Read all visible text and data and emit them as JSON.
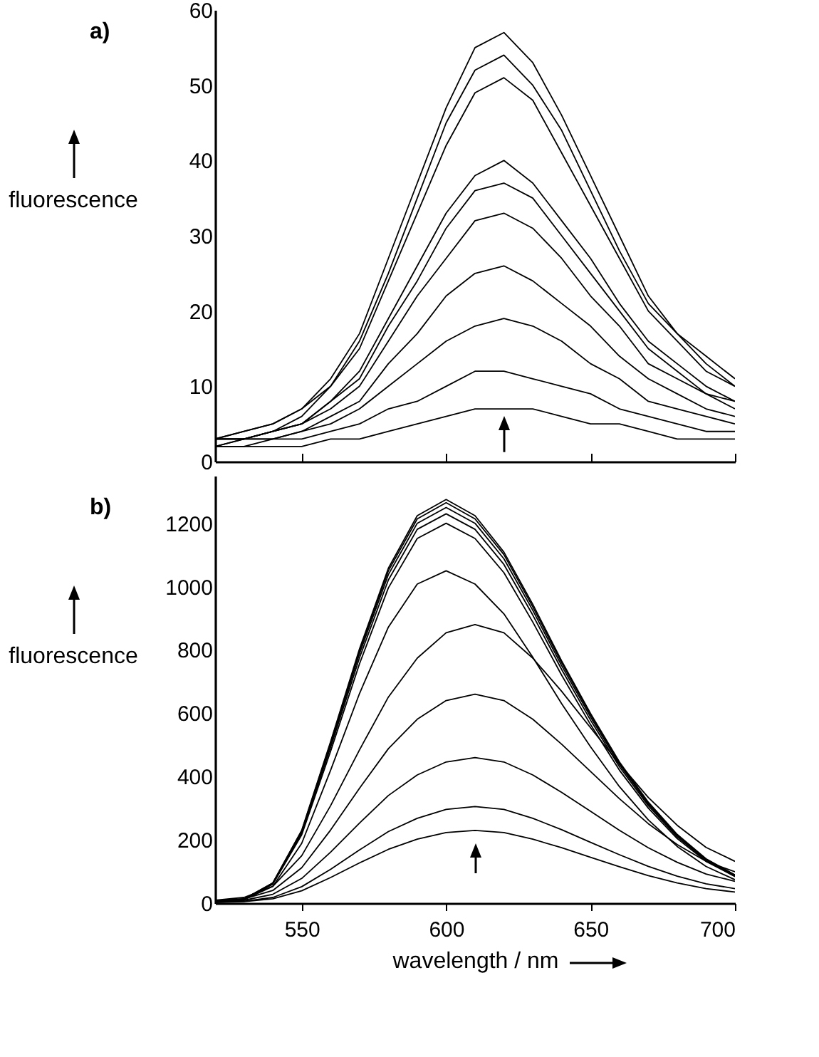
{
  "chart_data": [
    {
      "type": "line",
      "title": "a)",
      "ylabel": "fluorescence",
      "xlim": [
        520,
        700
      ],
      "ylim": [
        0,
        60
      ],
      "xticks": [
        550,
        600,
        650,
        700
      ],
      "yticks": [
        0,
        10,
        20,
        30,
        40,
        50,
        60
      ],
      "tick_labels": "y",
      "x": [
        520,
        530,
        540,
        550,
        560,
        570,
        580,
        590,
        600,
        610,
        620,
        630,
        640,
        650,
        660,
        670,
        680,
        690,
        700
      ],
      "series": [
        {
          "color": "#000000",
          "values": [
            3,
            4,
            5,
            7,
            11,
            17,
            27,
            37,
            47,
            55,
            57,
            53,
            46,
            38,
            30,
            22,
            17,
            14,
            11
          ]
        },
        {
          "color": "#000000",
          "values": [
            3,
            4,
            5,
            7,
            10,
            16,
            25,
            35,
            45,
            52,
            54,
            50,
            44,
            36,
            28,
            21,
            17,
            13,
            10
          ]
        },
        {
          "color": "#000000",
          "values": [
            3,
            3,
            4,
            6,
            10,
            15,
            24,
            33,
            42,
            49,
            51,
            48,
            41,
            34,
            27,
            20,
            16,
            12,
            10
          ]
        },
        {
          "color": "#000000",
          "values": [
            3,
            3,
            4,
            5,
            8,
            12,
            19,
            26,
            33,
            38,
            40,
            37,
            32,
            27,
            21,
            16,
            13,
            10,
            8
          ]
        },
        {
          "color": "#000000",
          "values": [
            3,
            3,
            4,
            5,
            8,
            11,
            18,
            24,
            31,
            36,
            37,
            35,
            30,
            25,
            20,
            15,
            12,
            9,
            8
          ]
        },
        {
          "color": "#000000",
          "values": [
            3,
            3,
            4,
            5,
            7,
            10,
            16,
            22,
            27,
            32,
            33,
            31,
            27,
            22,
            18,
            13,
            11,
            9,
            7
          ]
        },
        {
          "color": "#000000",
          "values": [
            2,
            3,
            3,
            4,
            6,
            8,
            13,
            17,
            22,
            25,
            26,
            24,
            21,
            18,
            14,
            11,
            9,
            7,
            6
          ]
        },
        {
          "color": "#000000",
          "values": [
            2,
            3,
            3,
            4,
            5,
            7,
            10,
            13,
            16,
            18,
            19,
            18,
            16,
            13,
            11,
            8,
            7,
            6,
            5
          ]
        },
        {
          "color": "#000000",
          "values": [
            2,
            2,
            3,
            3,
            4,
            5,
            7,
            8,
            10,
            12,
            12,
            11,
            10,
            9,
            7,
            6,
            5,
            4,
            4
          ]
        },
        {
          "color": "#000000",
          "values": [
            2,
            2,
            2,
            2,
            3,
            3,
            4,
            5,
            6,
            7,
            7,
            7,
            6,
            5,
            5,
            4,
            3,
            3,
            3
          ]
        }
      ]
    },
    {
      "type": "line",
      "title": "b)",
      "xlabel": "wavelength / nm",
      "ylabel": "fluorescence",
      "xlim": [
        520,
        700
      ],
      "ylim": [
        0,
        1350
      ],
      "xticks": [
        550,
        600,
        650,
        700
      ],
      "yticks": [
        0,
        200,
        400,
        600,
        800,
        1000,
        1200
      ],
      "x": [
        520,
        530,
        540,
        550,
        560,
        570,
        580,
        590,
        600,
        610,
        620,
        630,
        640,
        650,
        660,
        670,
        680,
        690,
        700
      ],
      "series": [
        {
          "color": "#000000",
          "values": [
            6,
            13,
            64,
            230,
            510,
            803,
            1058,
            1224,
            1275,
            1224,
            1109,
            944,
            765,
            599,
            446,
            319,
            217,
            140,
            89
          ]
        },
        {
          "color": "#000000",
          "values": [
            6,
            13,
            63,
            228,
            506,
            797,
            1050,
            1214,
            1265,
            1214,
            1101,
            936,
            759,
            595,
            443,
            316,
            215,
            139,
            89
          ]
        },
        {
          "color": "#000000",
          "values": [
            6,
            13,
            63,
            225,
            500,
            788,
            1038,
            1200,
            1250,
            1200,
            1088,
            925,
            750,
            588,
            438,
            313,
            213,
            138,
            88
          ]
        },
        {
          "color": "#000000",
          "values": [
            6,
            12,
            62,
            221,
            492,
            775,
            1021,
            1181,
            1230,
            1181,
            1070,
            910,
            738,
            578,
            431,
            308,
            209,
            135,
            86
          ]
        },
        {
          "color": "#000000",
          "values": [
            6,
            12,
            60,
            216,
            480,
            756,
            996,
            1152,
            1200,
            1152,
            1044,
            888,
            720,
            564,
            420,
            300,
            204,
            132,
            84
          ]
        },
        {
          "color": "#000000",
          "values": [
            5,
            11,
            53,
            189,
            420,
            662,
            872,
            1008,
            1050,
            1008,
            914,
            777,
            630,
            494,
            368,
            263,
            179,
            116,
            74
          ]
        },
        {
          "color": "#000000",
          "values": [
            9,
            18,
            53,
            150,
            308,
            484,
            651,
            774,
            854,
            880,
            854,
            774,
            669,
            554,
            440,
            334,
            246,
            176,
            132
          ]
        },
        {
          "color": "#000000",
          "values": [
            7,
            13,
            40,
            112,
            231,
            363,
            488,
            581,
            640,
            660,
            640,
            581,
            502,
            416,
            330,
            251,
            185,
            132,
            99
          ]
        },
        {
          "color": "#000000",
          "values": [
            5,
            9,
            28,
            78,
            161,
            253,
            340,
            405,
            446,
            460,
            446,
            405,
            350,
            290,
            230,
            175,
            129,
            92,
            69
          ]
        },
        {
          "color": "#000000",
          "values": [
            3,
            6,
            18,
            52,
            107,
            168,
            226,
            268,
            296,
            305,
            296,
            268,
            232,
            192,
            153,
            116,
            85,
            61,
            46
          ]
        },
        {
          "color": "#000000",
          "values": [
            2,
            5,
            14,
            39,
            81,
            127,
            170,
            202,
            223,
            230,
            223,
            202,
            175,
            145,
            115,
            87,
            64,
            46,
            35
          ]
        }
      ]
    }
  ]
}
